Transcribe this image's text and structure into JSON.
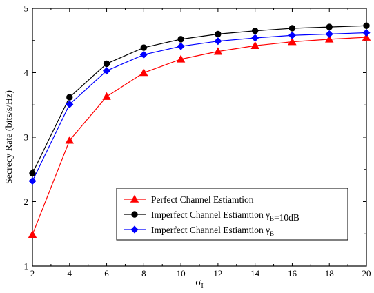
{
  "chart_data": {
    "type": "line",
    "xlabel": "σ",
    "xlabel_subscript": "I",
    "ylabel": "Secrecy Rate (bits/s/Hz)",
    "xlim": [
      2,
      20
    ],
    "ylim": [
      1,
      5
    ],
    "xticks": [
      2,
      4,
      6,
      8,
      10,
      12,
      14,
      16,
      18,
      20
    ],
    "yticks": [
      1,
      2,
      3,
      4,
      5
    ],
    "grid": false,
    "legend_position": "bottom-right",
    "x": [
      2,
      4,
      6,
      8,
      10,
      12,
      14,
      16,
      18,
      20
    ],
    "series": [
      {
        "name": "Perfect Channel Estiamtion",
        "legend_parts": [
          {
            "t": "Perfect Channel Estiamtion"
          }
        ],
        "color": "#ff0000",
        "marker": "triangle",
        "values": [
          1.49,
          2.95,
          3.63,
          4.0,
          4.21,
          4.33,
          4.42,
          4.48,
          4.52,
          4.55
        ]
      },
      {
        "name": "Imperfect Channel Estiamtion γB=10dB",
        "legend_parts": [
          {
            "t": "Imperfect Channel Estiamtion "
          },
          {
            "t": "γ"
          },
          {
            "t": "B",
            "sub": true
          },
          {
            "t": "=10dB"
          }
        ],
        "color": "#000000",
        "marker": "circle",
        "values": [
          2.44,
          3.62,
          4.14,
          4.39,
          4.52,
          4.6,
          4.65,
          4.69,
          4.71,
          4.73
        ]
      },
      {
        "name": "Imperfect Channel Estiamtion γB",
        "legend_parts": [
          {
            "t": "Imperfect Channel Estiamtion "
          },
          {
            "t": "γ"
          },
          {
            "t": "B",
            "sub": true
          }
        ],
        "color": "#0000ff",
        "marker": "diamond",
        "values": [
          2.32,
          3.51,
          4.03,
          4.28,
          4.41,
          4.49,
          4.54,
          4.58,
          4.6,
          4.62
        ]
      }
    ]
  }
}
